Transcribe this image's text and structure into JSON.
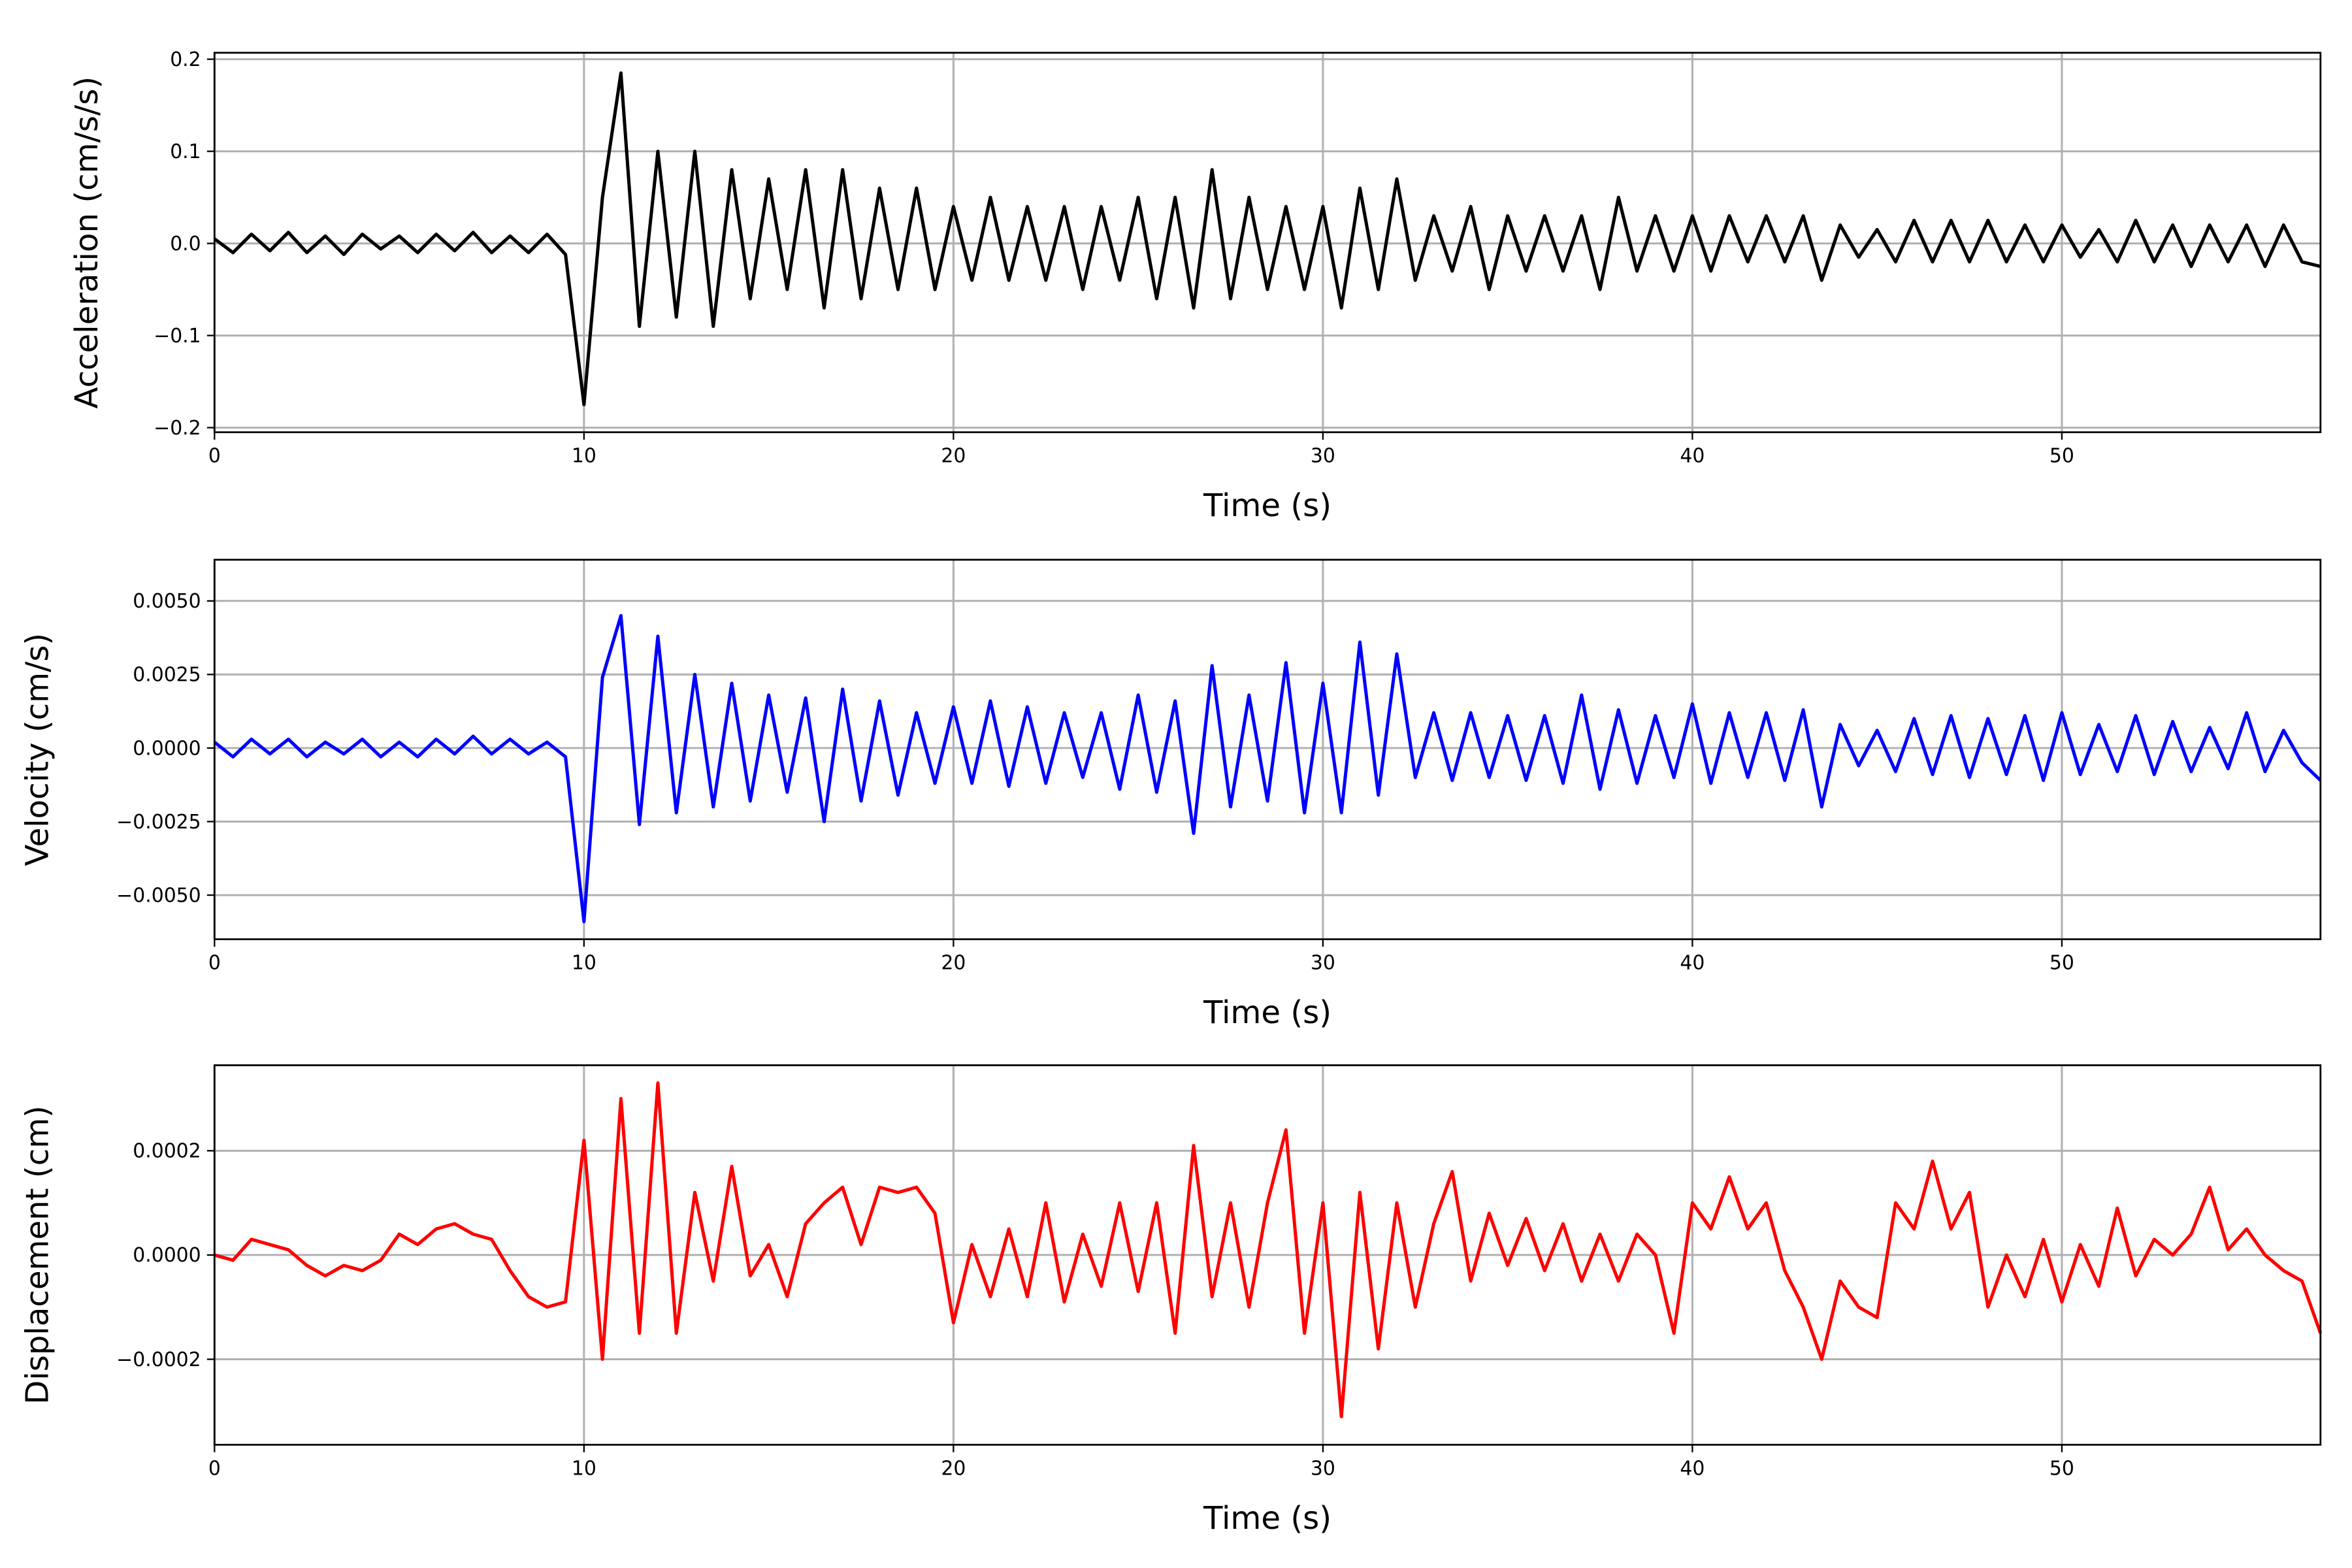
{
  "chart_data": [
    {
      "type": "line",
      "xlabel": "Time (s)",
      "ylabel": "Acceleration (cm/s/s)",
      "color": "#000000",
      "grid": true,
      "xlim": [
        0,
        57
      ],
      "ylim": [
        -0.205,
        0.207
      ],
      "xticks": [
        0,
        10,
        20,
        30,
        40,
        50
      ],
      "yticks": [
        {
          "value": -0.2,
          "label": "−0.2"
        },
        {
          "value": -0.1,
          "label": "−0.1"
        },
        {
          "value": 0,
          "label": "0.0"
        },
        0.1,
        0.2
      ],
      "x": [
        0,
        0.5,
        1,
        1.5,
        2,
        2.5,
        3,
        3.5,
        4,
        4.5,
        5,
        5.5,
        6,
        6.5,
        7,
        7.5,
        8,
        8.5,
        9,
        9.5,
        10,
        10.5,
        11,
        11.5,
        12,
        12.5,
        13,
        13.5,
        14,
        14.5,
        15,
        15.5,
        16,
        16.5,
        17,
        17.5,
        18,
        18.5,
        19,
        19.5,
        20,
        20.5,
        21,
        21.5,
        22,
        22.5,
        23,
        23.5,
        24,
        24.5,
        25,
        25.5,
        26,
        26.5,
        27,
        27.5,
        28,
        28.5,
        29,
        29.5,
        30,
        30.5,
        31,
        31.5,
        32,
        32.5,
        33,
        33.5,
        34,
        34.5,
        35,
        35.5,
        36,
        36.5,
        37,
        37.5,
        38,
        38.5,
        39,
        39.5,
        40,
        40.5,
        41,
        41.5,
        42,
        42.5,
        43,
        43.5,
        44,
        44.5,
        45,
        45.5,
        46,
        46.5,
        47,
        47.5,
        48,
        48.5,
        49,
        49.5,
        50,
        50.5,
        51,
        51.5,
        52,
        52.5,
        53,
        53.5,
        54,
        54.5,
        55,
        55.5,
        56,
        56.5,
        57
      ],
      "values": [
        0.005,
        -0.01,
        0.01,
        -0.008,
        0.012,
        -0.01,
        0.008,
        -0.012,
        0.01,
        -0.006,
        0.008,
        -0.01,
        0.01,
        -0.008,
        0.012,
        -0.01,
        0.008,
        -0.01,
        0.01,
        -0.012,
        -0.175,
        0.05,
        0.185,
        -0.09,
        0.1,
        -0.08,
        0.1,
        -0.09,
        0.08,
        -0.06,
        0.07,
        -0.05,
        0.08,
        -0.07,
        0.08,
        -0.06,
        0.06,
        -0.05,
        0.06,
        -0.05,
        0.04,
        -0.04,
        0.05,
        -0.04,
        0.04,
        -0.04,
        0.04,
        -0.05,
        0.04,
        -0.04,
        0.05,
        -0.06,
        0.05,
        -0.07,
        0.08,
        -0.06,
        0.05,
        -0.05,
        0.04,
        -0.05,
        0.04,
        -0.07,
        0.06,
        -0.05,
        0.07,
        -0.04,
        0.03,
        -0.03,
        0.04,
        -0.05,
        0.03,
        -0.03,
        0.03,
        -0.03,
        0.03,
        -0.05,
        0.05,
        -0.03,
        0.03,
        -0.03,
        0.03,
        -0.03,
        0.03,
        -0.02,
        0.03,
        -0.02,
        0.03,
        -0.04,
        0.02,
        -0.015,
        0.015,
        -0.02,
        0.025,
        -0.02,
        0.025,
        -0.02,
        0.025,
        -0.02,
        0.02,
        -0.02,
        0.02,
        -0.015,
        0.015,
        -0.02,
        0.025,
        -0.02,
        0.02,
        -0.025,
        0.02,
        -0.02,
        0.02,
        -0.025,
        0.02,
        -0.02,
        -0.025
      ]
    },
    {
      "type": "line",
      "xlabel": "Time (s)",
      "ylabel": "Velocity (cm/s)",
      "color": "#0000ff",
      "grid": true,
      "xlim": [
        0,
        57
      ],
      "ylim": [
        -0.0065,
        0.0064
      ],
      "xticks": [
        0,
        10,
        20,
        30,
        40,
        50
      ],
      "yticks": [
        {
          "value": -0.005,
          "label": "−0.0050"
        },
        {
          "value": -0.0025,
          "label": "−0.0025"
        },
        {
          "value": 0,
          "label": "0.0000"
        },
        {
          "value": 0.0025,
          "label": "0.0025"
        },
        {
          "value": 0.005,
          "label": "0.0050"
        }
      ],
      "x": [
        0,
        0.5,
        1,
        1.5,
        2,
        2.5,
        3,
        3.5,
        4,
        4.5,
        5,
        5.5,
        6,
        6.5,
        7,
        7.5,
        8,
        8.5,
        9,
        9.5,
        10,
        10.5,
        11,
        11.5,
        12,
        12.5,
        13,
        13.5,
        14,
        14.5,
        15,
        15.5,
        16,
        16.5,
        17,
        17.5,
        18,
        18.5,
        19,
        19.5,
        20,
        20.5,
        21,
        21.5,
        22,
        22.5,
        23,
        23.5,
        24,
        24.5,
        25,
        25.5,
        26,
        26.5,
        27,
        27.5,
        28,
        28.5,
        29,
        29.5,
        30,
        30.5,
        31,
        31.5,
        32,
        32.5,
        33,
        33.5,
        34,
        34.5,
        35,
        35.5,
        36,
        36.5,
        37,
        37.5,
        38,
        38.5,
        39,
        39.5,
        40,
        40.5,
        41,
        41.5,
        42,
        42.5,
        43,
        43.5,
        44,
        44.5,
        45,
        45.5,
        46,
        46.5,
        47,
        47.5,
        48,
        48.5,
        49,
        49.5,
        50,
        50.5,
        51,
        51.5,
        52,
        52.5,
        53,
        53.5,
        54,
        54.5,
        55,
        55.5,
        56,
        56.5,
        57
      ],
      "values": [
        0.0002,
        -0.0003,
        0.0003,
        -0.0002,
        0.0003,
        -0.0003,
        0.0002,
        -0.0002,
        0.0003,
        -0.0003,
        0.0002,
        -0.0003,
        0.0003,
        -0.0002,
        0.0004,
        -0.0002,
        0.0003,
        -0.0002,
        0.0002,
        -0.0003,
        -0.0059,
        0.0024,
        0.0045,
        -0.0026,
        0.0038,
        -0.0022,
        0.0025,
        -0.002,
        0.0022,
        -0.0018,
        0.0018,
        -0.0015,
        0.0017,
        -0.0025,
        0.002,
        -0.0018,
        0.0016,
        -0.0016,
        0.0012,
        -0.0012,
        0.0014,
        -0.0012,
        0.0016,
        -0.0013,
        0.0014,
        -0.0012,
        0.0012,
        -0.001,
        0.0012,
        -0.0014,
        0.0018,
        -0.0015,
        0.0016,
        -0.0029,
        0.0028,
        -0.002,
        0.0018,
        -0.0018,
        0.0029,
        -0.0022,
        0.0022,
        -0.0022,
        0.0036,
        -0.0016,
        0.0032,
        -0.001,
        0.0012,
        -0.0011,
        0.0012,
        -0.001,
        0.0011,
        -0.0011,
        0.0011,
        -0.0012,
        0.0018,
        -0.0014,
        0.0013,
        -0.0012,
        0.0011,
        -0.001,
        0.0015,
        -0.0012,
        0.0012,
        -0.001,
        0.0012,
        -0.0011,
        0.0013,
        -0.002,
        0.0008,
        -0.0006,
        0.0006,
        -0.0008,
        0.001,
        -0.0009,
        0.0011,
        -0.001,
        0.001,
        -0.0009,
        0.0011,
        -0.0011,
        0.0012,
        -0.0009,
        0.0008,
        -0.0008,
        0.0011,
        -0.0009,
        0.0009,
        -0.0008,
        0.0007,
        -0.0007,
        0.0012,
        -0.0008,
        0.0006,
        -0.0005,
        -0.0011
      ]
    },
    {
      "type": "line",
      "xlabel": "Time (s)",
      "ylabel": "Displacement (cm)",
      "color": "#ff0000",
      "grid": true,
      "xlim": [
        0,
        57
      ],
      "ylim": [
        -0.000364,
        0.000364
      ],
      "xticks": [
        0,
        10,
        20,
        30,
        40,
        50
      ],
      "yticks": [
        {
          "value": -0.0002,
          "label": "−0.0002"
        },
        {
          "value": 0,
          "label": "0.0000"
        },
        {
          "value": 0.0002,
          "label": "0.0002"
        }
      ],
      "x": [
        0,
        0.5,
        1,
        1.5,
        2,
        2.5,
        3,
        3.5,
        4,
        4.5,
        5,
        5.5,
        6,
        6.5,
        7,
        7.5,
        8,
        8.5,
        9,
        9.5,
        10,
        10.5,
        11,
        11.5,
        12,
        12.5,
        13,
        13.5,
        14,
        14.5,
        15,
        15.5,
        16,
        16.5,
        17,
        17.5,
        18,
        18.5,
        19,
        19.5,
        20,
        20.5,
        21,
        21.5,
        22,
        22.5,
        23,
        23.5,
        24,
        24.5,
        25,
        25.5,
        26,
        26.5,
        27,
        27.5,
        28,
        28.5,
        29,
        29.5,
        30,
        30.5,
        31,
        31.5,
        32,
        32.5,
        33,
        33.5,
        34,
        34.5,
        35,
        35.5,
        36,
        36.5,
        37,
        37.5,
        38,
        38.5,
        39,
        39.5,
        40,
        40.5,
        41,
        41.5,
        42,
        42.5,
        43,
        43.5,
        44,
        44.5,
        45,
        45.5,
        46,
        46.5,
        47,
        47.5,
        48,
        48.5,
        49,
        49.5,
        50,
        50.5,
        51,
        51.5,
        52,
        52.5,
        53,
        53.5,
        54,
        54.5,
        55,
        55.5,
        56,
        56.5,
        57
      ],
      "values": [
        0,
        -1e-05,
        3e-05,
        2e-05,
        1e-05,
        -2e-05,
        -4e-05,
        -2e-05,
        -3e-05,
        -1e-05,
        4e-05,
        2e-05,
        5e-05,
        6e-05,
        4e-05,
        3e-05,
        -3e-05,
        -8e-05,
        -0.0001,
        -9e-05,
        0.00022,
        -0.0002,
        0.0003,
        -0.00015,
        0.00033,
        -0.00015,
        0.00012,
        -5e-05,
        0.00017,
        -4e-05,
        2e-05,
        -8e-05,
        6e-05,
        0.0001,
        0.00013,
        2e-05,
        0.00013,
        0.00012,
        0.00013,
        8e-05,
        -0.00013,
        2e-05,
        -8e-05,
        5e-05,
        -8e-05,
        0.0001,
        -9e-05,
        4e-05,
        -6e-05,
        0.0001,
        -7e-05,
        0.0001,
        -0.00015,
        0.00021,
        -8e-05,
        0.0001,
        -0.0001,
        0.0001,
        0.00024,
        -0.00015,
        0.0001,
        -0.00031,
        0.00012,
        -0.00018,
        0.0001,
        -0.0001,
        6e-05,
        0.00016,
        -5e-05,
        8e-05,
        -2e-05,
        7e-05,
        -3e-05,
        6e-05,
        -5e-05,
        4e-05,
        -5e-05,
        4e-05,
        0,
        -0.00015,
        0.0001,
        5e-05,
        0.00015,
        5e-05,
        0.0001,
        -3e-05,
        -0.0001,
        -0.0002,
        -5e-05,
        -0.0001,
        -0.00012,
        0.0001,
        5e-05,
        0.00018,
        5e-05,
        0.00012,
        -0.0001,
        0,
        -8e-05,
        3e-05,
        -9e-05,
        2e-05,
        -6e-05,
        9e-05,
        -4e-05,
        3e-05,
        0,
        4e-05,
        0.00013,
        1e-05,
        5e-05,
        0,
        -3e-05,
        -5e-05,
        -0.00015
      ]
    }
  ]
}
